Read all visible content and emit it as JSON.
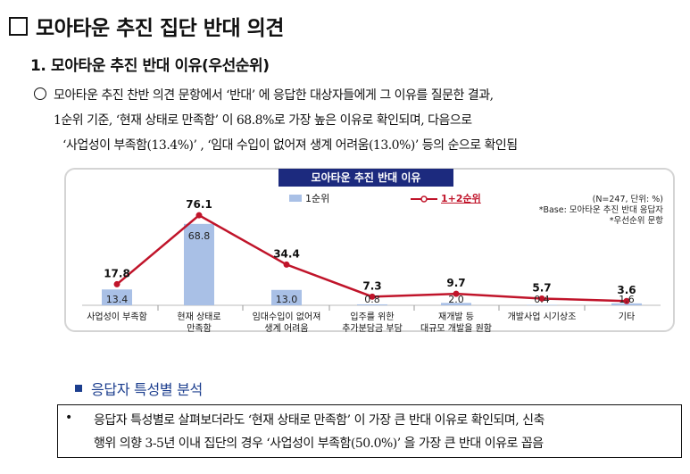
{
  "heading": "모아타운 추진 집단 반대 의견",
  "subheading": "1. 모아타운 추진 반대 이유(우선순위)",
  "paragraph": {
    "lines": [
      "모아타운 추진 찬반 의견 문항에서 ‘반대’ 에 응답한 대상자들에게 그 이유를 질문한 결과,",
      "1순위 기준, ‘현재 상태로 만족함’ 이 68.8%로 가장 높은 이유로 확인되며, 다음으로",
      "‘사업성이 부족함(13.4%)’ , ‘임대 수입이 없어져 생계 어려움(13.0%)’ 등의 순으로 확인됨"
    ]
  },
  "chart_data": {
    "type": "bar",
    "title": "모아타운 추진 반대 이유",
    "categories": [
      [
        "사업성이 부족함"
      ],
      [
        "현재 상태로",
        "만족함"
      ],
      [
        "임대수입이 없어져",
        "생계 어려움"
      ],
      [
        "입주를 위한",
        "추가분담금 부담"
      ],
      [
        "재개발 등",
        "대규모 개발을 원함"
      ],
      [
        "개발사업 시기상조"
      ],
      [
        "기타"
      ]
    ],
    "series": [
      {
        "name": "1순위",
        "type": "bar",
        "color": "#a9c0e6",
        "values": [
          13.4,
          68.8,
          13.0,
          0.8,
          2.0,
          0.4,
          1.6
        ]
      },
      {
        "name": "1+2순위",
        "type": "line",
        "color": "#c0142a",
        "values": [
          17.8,
          76.1,
          34.4,
          7.3,
          9.7,
          5.7,
          3.6
        ]
      }
    ],
    "note_lines": [
      "(N=247, 단위: %)",
      "*Base: 모아타운 추진 반대 응답자",
      "*우선순위 문항"
    ],
    "ylim": [
      0,
      80
    ]
  },
  "section": {
    "title": "응답자 특성별 분석",
    "bullet_lines": [
      "응답자 특성별로 살펴보더라도 ‘현재 상태로 만족함’ 이 가장 큰 반대 이유로 확인되며, 신축",
      "행위 의향 3-5년 이내 집단의 경우 ‘사업성이 부족함(50.0%)’ 을 가장 큰 반대 이유로 꼽음"
    ]
  }
}
